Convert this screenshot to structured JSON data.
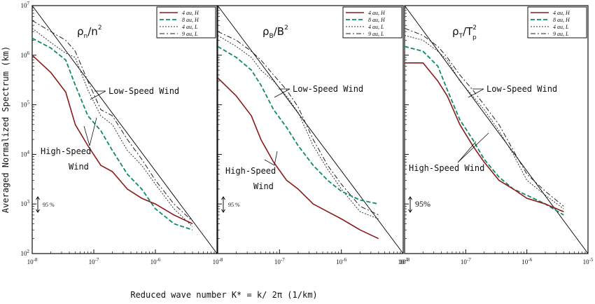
{
  "figure": {
    "xlabel": "Reduced wave number K* = k/ 2π (1/km)",
    "ylabel": "Averaged Normalized Spectrum (km)",
    "y_ticks": [
      {
        "base": "10",
        "exp": "7"
      },
      {
        "base": "10",
        "exp": "6"
      },
      {
        "base": "10",
        "exp": "5"
      },
      {
        "base": "10",
        "exp": "4"
      },
      {
        "base": "10",
        "exp": "3"
      },
      {
        "base": "10",
        "exp": "2"
      }
    ],
    "colors": {
      "series_04H": "#8b1a1a",
      "series_08H": "#0e8a63",
      "series_04L": "#333333",
      "series_09L": "#222222"
    },
    "legend": [
      "4 au, H",
      "8 au, H",
      "4 au, L",
      "9 au, L"
    ]
  },
  "chart_data": [
    {
      "type": "line",
      "log_x": true,
      "log_y": true,
      "title": {
        "main": "ρ",
        "sub": "n",
        "rest": "/n",
        "sup": "2"
      },
      "xlim": [
        1e-08,
        1e-05
      ],
      "ylim": [
        100,
        10000000
      ],
      "x_ticks": [
        {
          "base": "10",
          "exp": "-8"
        },
        {
          "base": "10",
          "exp": "-7"
        },
        {
          "base": "10",
          "exp": "-6"
        }
      ],
      "confidence_label": "95 %",
      "annotations": {
        "low": "Low-Speed Wind",
        "high1": "High-Speed",
        "high2": "Wind"
      },
      "reference_line": [
        [
          1e-08,
          10000000
        ],
        [
          1e-05,
          100
        ]
      ],
      "series": [
        {
          "name": "4 au, H",
          "x": [
            1e-08,
            2e-08,
            3.5e-08,
            5e-08,
            8e-08,
            1.3e-07,
            2e-07,
            3.5e-07,
            6e-07,
            1e-06,
            2e-06,
            4e-06
          ],
          "y": [
            1000000,
            450000,
            180000,
            40000,
            15000,
            6000,
            4500,
            2000,
            1300,
            1000,
            600,
            400
          ]
        },
        {
          "name": "8 au, H",
          "x": [
            1e-08,
            2e-08,
            3.5e-08,
            5e-08,
            8e-08,
            1.3e-07,
            2e-07,
            3.5e-07,
            6e-07,
            1e-06,
            2e-06,
            4e-06
          ],
          "y": [
            2200000,
            1400000,
            800000,
            250000,
            60000,
            30000,
            12000,
            4000,
            2000,
            800,
            400,
            300
          ]
        },
        {
          "name": "4 au, L",
          "x": [
            1e-08,
            2e-08,
            3.5e-08,
            5e-08,
            8e-08,
            1.3e-07,
            2e-07,
            3.5e-07,
            6e-07,
            1e-06,
            2e-06,
            4e-06
          ],
          "y": [
            3500000,
            1800000,
            1100000,
            900000,
            200000,
            60000,
            40000,
            12000,
            6000,
            2500,
            800,
            350
          ]
        },
        {
          "name": "9 au, L",
          "x": [
            1e-08,
            2e-08,
            3.5e-08,
            5e-08,
            8e-08,
            1.3e-07,
            2e-07,
            3.5e-07,
            6e-07,
            1e-06,
            2e-06,
            4e-06
          ],
          "y": [
            5000000,
            3000000,
            2000000,
            1200000,
            300000,
            80000,
            60000,
            20000,
            8000,
            3000,
            1000,
            450
          ]
        }
      ]
    },
    {
      "type": "line",
      "log_x": true,
      "log_y": true,
      "title": {
        "main": "ρ",
        "sub": "B",
        "rest": "/B",
        "sup": "2"
      },
      "xlim": [
        1e-08,
        1e-05
      ],
      "ylim": [
        100,
        10000000
      ],
      "x_ticks": [
        {
          "base": "10",
          "exp": "-8"
        },
        {
          "base": "10",
          "exp": "-7"
        },
        {
          "base": "10",
          "exp": "-6"
        },
        {
          "base": "10",
          "exp": "-5"
        }
      ],
      "confidence_label": "95 %",
      "annotations": {
        "low": "Low-Speed Wind",
        "high1": "High-Speed",
        "high2": "Wind"
      },
      "reference_line": [
        [
          1e-08,
          10000000
        ],
        [
          1e-05,
          100
        ]
      ],
      "series": [
        {
          "name": "4 au, H",
          "x": [
            1e-08,
            2e-08,
            3.5e-08,
            5e-08,
            8e-08,
            1.3e-07,
            2e-07,
            3.5e-07,
            6e-07,
            1e-06,
            2e-06,
            4e-06
          ],
          "y": [
            350000,
            150000,
            60000,
            20000,
            7000,
            3000,
            2000,
            1000,
            700,
            500,
            300,
            200
          ]
        },
        {
          "name": "8 au, H",
          "x": [
            1e-08,
            2e-08,
            3.5e-08,
            5e-08,
            8e-08,
            1.3e-07,
            2e-07,
            3.5e-07,
            6e-07,
            1e-06,
            2e-06,
            4e-06
          ],
          "y": [
            1500000,
            900000,
            500000,
            250000,
            80000,
            35000,
            15000,
            6000,
            3000,
            1800,
            1200,
            1000
          ]
        },
        {
          "name": "4 au, L",
          "x": [
            1e-08,
            2e-08,
            3.5e-08,
            5e-08,
            8e-08,
            1.3e-07,
            2e-07,
            3.5e-07,
            6e-07,
            1e-06,
            2e-06,
            4e-06
          ],
          "y": [
            2500000,
            1500000,
            900000,
            500000,
            300000,
            150000,
            70000,
            15000,
            5000,
            2000,
            700,
            500
          ]
        },
        {
          "name": "9 au, L",
          "x": [
            1e-08,
            2e-08,
            3.5e-08,
            5e-08,
            8e-08,
            1.3e-07,
            2e-07,
            3.5e-07,
            6e-07,
            1e-06,
            2e-06,
            4e-06
          ],
          "y": [
            3000000,
            2000000,
            1200000,
            800000,
            400000,
            200000,
            90000,
            20000,
            6000,
            2500,
            900,
            600
          ]
        }
      ]
    },
    {
      "type": "line",
      "log_x": true,
      "log_y": true,
      "title": {
        "main": "ρ",
        "sub": "T",
        "rest": "/T",
        "sup": "2",
        "rest_sub": "p"
      },
      "xlim": [
        1e-08,
        1e-05
      ],
      "ylim": [
        100,
        10000000
      ],
      "x_ticks": [
        {
          "base": "10",
          "exp": "-8"
        },
        {
          "base": "10",
          "exp": "-7"
        },
        {
          "base": "10",
          "exp": "-6"
        },
        {
          "base": "10",
          "exp": "-5"
        }
      ],
      "confidence_label": "95%",
      "annotations": {
        "low": "Low-Speed Wind",
        "high1": "High-Speed Wind",
        "high2": ""
      },
      "reference_line": [
        [
          1e-08,
          10000000
        ],
        [
          1e-05,
          100
        ]
      ],
      "series": [
        {
          "name": "4 au, H",
          "x": [
            1e-08,
            2e-08,
            3.5e-08,
            5e-08,
            8e-08,
            1.3e-07,
            2e-07,
            3.5e-07,
            6e-07,
            1e-06,
            2e-06,
            4e-06
          ],
          "y": [
            700000,
            700000,
            300000,
            150000,
            40000,
            15000,
            7000,
            3000,
            2000,
            1300,
            1000,
            700
          ]
        },
        {
          "name": "8 au, H",
          "x": [
            1e-08,
            2e-08,
            3.5e-08,
            5e-08,
            8e-08,
            1.3e-07,
            2e-07,
            3.5e-07,
            6e-07,
            1e-06,
            2e-06,
            4e-06
          ],
          "y": [
            1500000,
            1200000,
            600000,
            200000,
            50000,
            20000,
            8000,
            3500,
            2000,
            1500,
            1000,
            600
          ]
        },
        {
          "name": "4 au, L",
          "x": [
            1e-08,
            2e-08,
            3.5e-08,
            5e-08,
            8e-08,
            1.3e-07,
            2e-07,
            3.5e-07,
            6e-07,
            1e-06,
            2e-06,
            4e-06
          ],
          "y": [
            2500000,
            2000000,
            1200000,
            800000,
            300000,
            150000,
            80000,
            30000,
            10000,
            3000,
            1500,
            800
          ]
        },
        {
          "name": "9 au, L",
          "x": [
            1e-08,
            2e-08,
            3.5e-08,
            5e-08,
            8e-08,
            1.3e-07,
            2e-07,
            3.5e-07,
            6e-07,
            1e-06,
            2e-06,
            4e-06
          ],
          "y": [
            3500000,
            2500000,
            1500000,
            900000,
            400000,
            200000,
            100000,
            40000,
            12000,
            4000,
            1800,
            900
          ]
        }
      ]
    }
  ]
}
